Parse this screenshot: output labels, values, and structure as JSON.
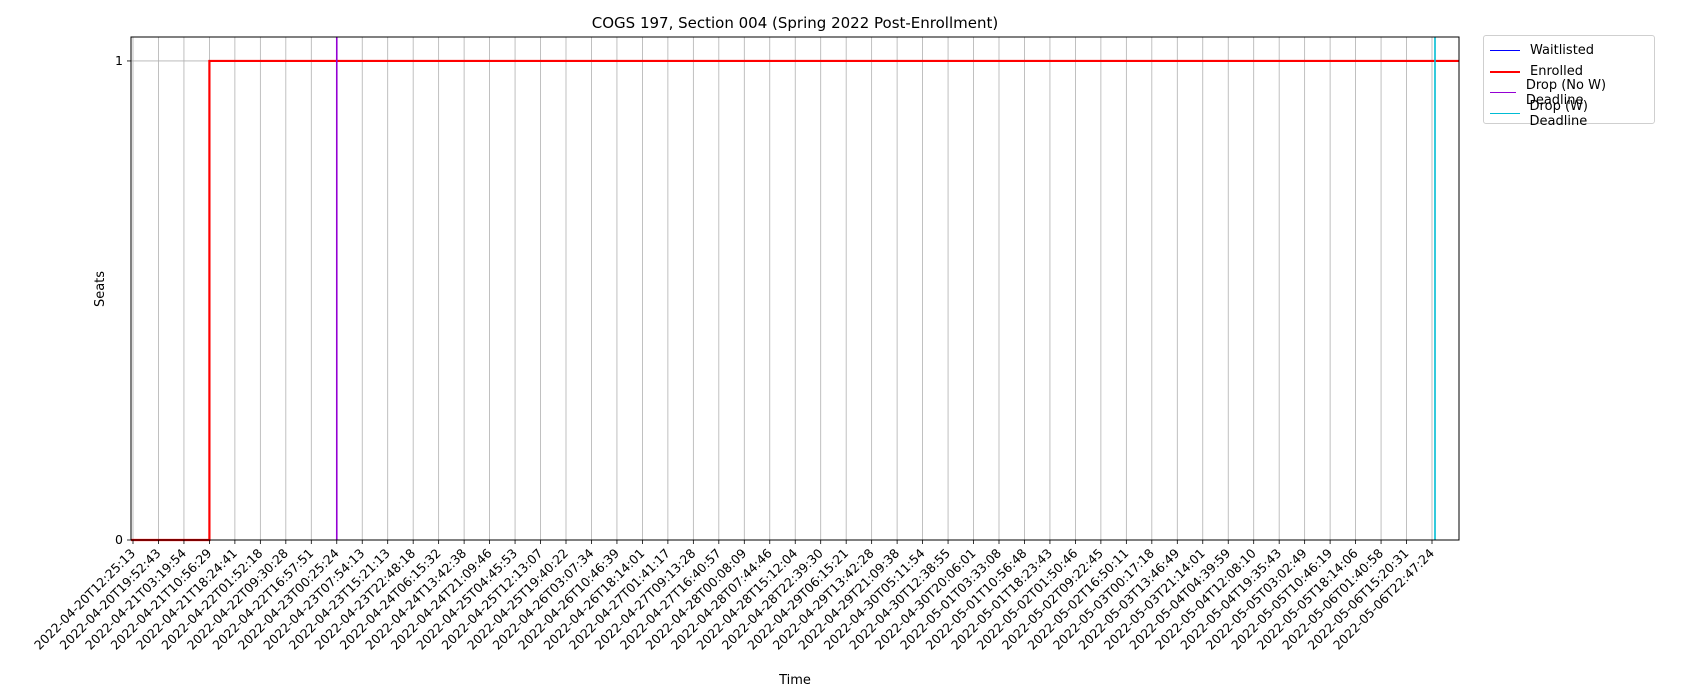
{
  "chart_data": {
    "type": "line",
    "title": "COGS 197, Section 004 (Spring 2022 Post-Enrollment)",
    "xlabel": "Time",
    "ylabel": "Seats",
    "ylim": [
      0,
      1.05
    ],
    "yticks": [
      0,
      1
    ],
    "grid": true,
    "legend_position": "upper left, outside right",
    "x": [
      "2022-04-20T12:25:13",
      "2022-04-20T19:52:43",
      "2022-04-21T03:19:54",
      "2022-04-21T10:56:29",
      "2022-04-21T18:24:41",
      "2022-04-22T01:52:18",
      "2022-04-22T09:30:28",
      "2022-04-22T16:57:51",
      "2022-04-23T00:25:24",
      "2022-04-23T07:54:13",
      "2022-04-23T15:21:13",
      "2022-04-23T22:48:18",
      "2022-04-24T06:15:32",
      "2022-04-24T13:42:38",
      "2022-04-24T21:09:46",
      "2022-04-25T04:45:53",
      "2022-04-25T12:13:07",
      "2022-04-25T19:40:22",
      "2022-04-26T03:07:34",
      "2022-04-26T10:46:39",
      "2022-04-26T18:14:01",
      "2022-04-27T01:41:17",
      "2022-04-27T09:13:28",
      "2022-04-27T16:40:57",
      "2022-04-28T00:08:09",
      "2022-04-28T07:44:46",
      "2022-04-28T15:12:04",
      "2022-04-28T22:39:30",
      "2022-04-29T06:15:21",
      "2022-04-29T13:42:28",
      "2022-04-29T21:09:38",
      "2022-04-30T05:11:54",
      "2022-04-30T12:38:55",
      "2022-04-30T20:06:01",
      "2022-05-01T03:33:08",
      "2022-05-01T10:56:48",
      "2022-05-01T18:23:43",
      "2022-05-02T01:50:46",
      "2022-05-02T09:22:45",
      "2022-05-02T16:50:11",
      "2022-05-03T00:17:18",
      "2022-05-03T13:46:49",
      "2022-05-03T21:14:01",
      "2022-05-04T04:39:59",
      "2022-05-04T12:08:10",
      "2022-05-04T19:35:43",
      "2022-05-05T03:02:49",
      "2022-05-05T10:46:19",
      "2022-05-05T18:14:06",
      "2022-05-06T01:40:58",
      "2022-05-06T15:20:31",
      "2022-05-06T22:47:24"
    ],
    "series": [
      {
        "name": "Waitlisted",
        "color": "#0000ff",
        "values": [
          0,
          0,
          0,
          0,
          0,
          0,
          0,
          0,
          0,
          0,
          0,
          0,
          0,
          0,
          0,
          0,
          0,
          0,
          0,
          0,
          0,
          0,
          0,
          0,
          0,
          0,
          0,
          0,
          0,
          0,
          0,
          0,
          0,
          0,
          0,
          0,
          0,
          0,
          0,
          0,
          0,
          0,
          0,
          0,
          0,
          0,
          0,
          0,
          0,
          0,
          0,
          0
        ]
      },
      {
        "name": "Enrolled",
        "color": "#ff0000",
        "values": [
          0,
          0,
          0,
          1,
          1,
          1,
          1,
          1,
          1,
          1,
          1,
          1,
          1,
          1,
          1,
          1,
          1,
          1,
          1,
          1,
          1,
          1,
          1,
          1,
          1,
          1,
          1,
          1,
          1,
          1,
          1,
          1,
          1,
          1,
          1,
          1,
          1,
          1,
          1,
          1,
          1,
          1,
          1,
          1,
          1,
          1,
          1,
          1,
          1,
          1,
          1,
          1
        ]
      }
    ],
    "vlines": [
      {
        "name": "Drop (No W) Deadline",
        "color": "#9400d3",
        "x": "2022-04-23T00:25:24"
      },
      {
        "name": "Drop (W) Deadline",
        "color": "#00bcd4",
        "x": "2022-05-06T22:47:24"
      }
    ]
  }
}
